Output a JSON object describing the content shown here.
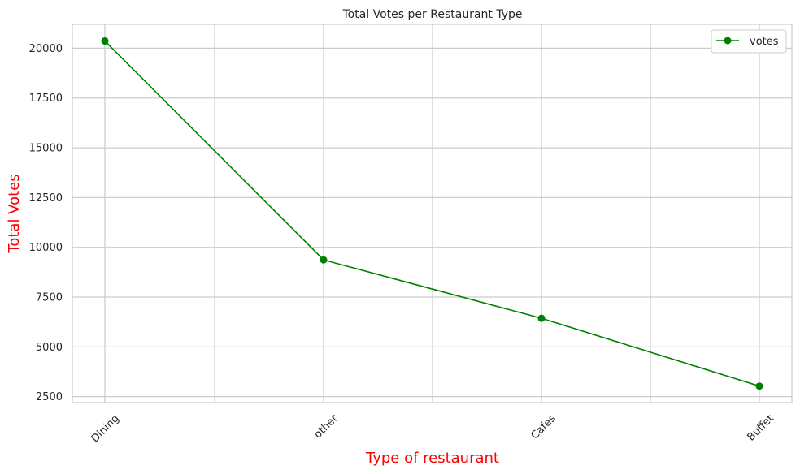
{
  "chart_data": {
    "type": "line",
    "title": "Total Votes per Restaurant Type",
    "xlabel": "Type of restaurant",
    "ylabel": "Total Votes",
    "categories": [
      "Dining",
      "other",
      "Cafes",
      "Buffet"
    ],
    "series": [
      {
        "name": "votes",
        "values": [
          20363,
          9367,
          6434,
          3028
        ],
        "color": "#008000"
      }
    ],
    "ylim": [
      2200,
      21200
    ],
    "yticks": [
      2500,
      5000,
      7500,
      10000,
      12500,
      15000,
      17500,
      20000
    ],
    "grid": true,
    "legend_position": "top-right",
    "label_color": "#ff0000",
    "grid_color": "#cccccc"
  }
}
